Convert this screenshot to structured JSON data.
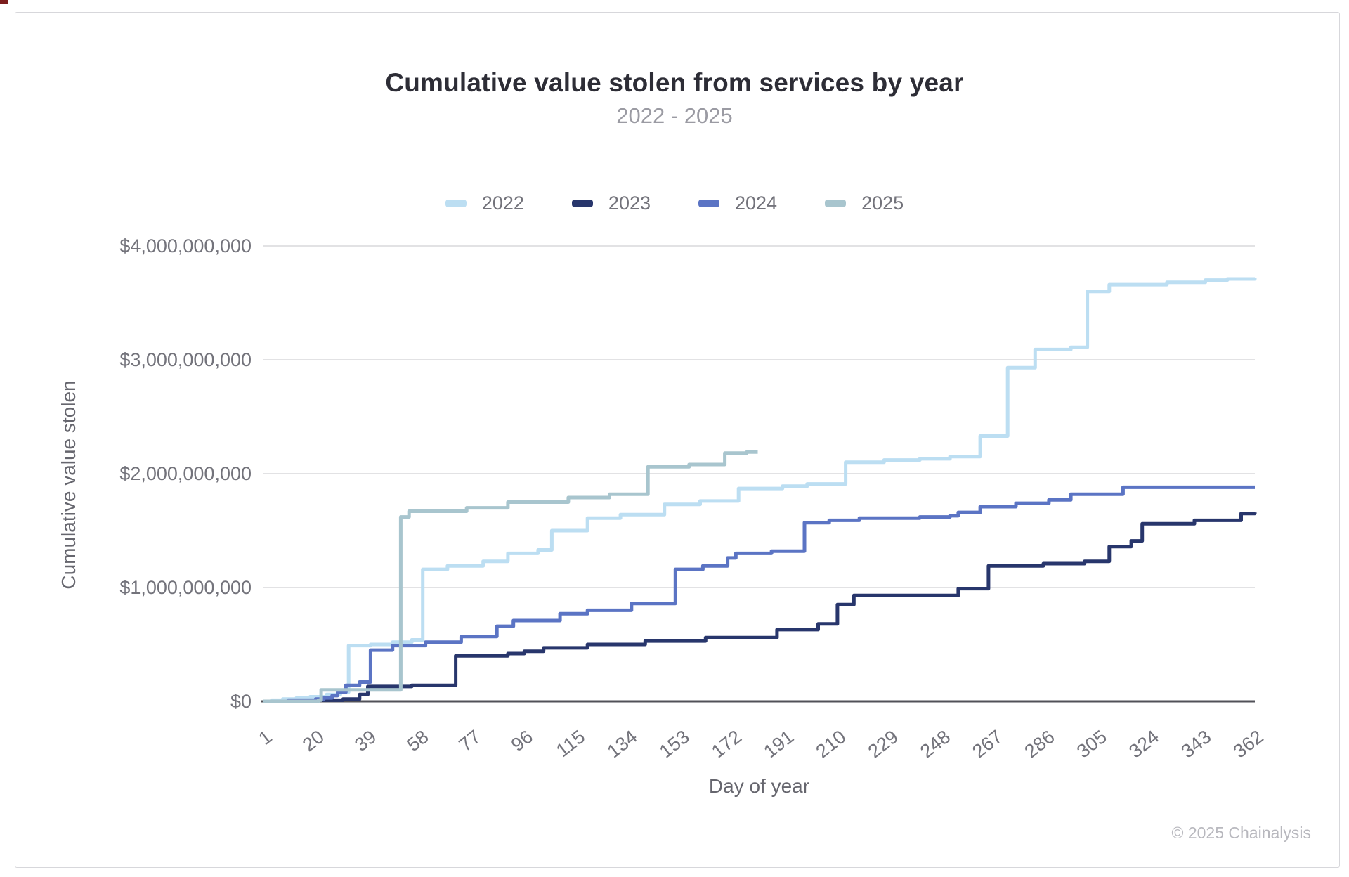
{
  "header": {
    "title": "Cumulative value stolen from services by year",
    "subtitle": "2022 - 2025"
  },
  "footer": {
    "credit": "© 2025 Chainalysis"
  },
  "chart_data": {
    "type": "line",
    "step": true,
    "title": "Cumulative value stolen from services by year",
    "subtitle": "2022 - 2025",
    "xlabel": "Day of year",
    "ylabel": "Cumulative value stolen",
    "unit": "USD",
    "xlim": [
      1,
      362
    ],
    "ylim": [
      0,
      4000000000
    ],
    "grid": "horizontal",
    "legend_position": "top",
    "x_ticks": [
      1,
      20,
      39,
      58,
      77,
      96,
      115,
      134,
      153,
      172,
      191,
      210,
      229,
      248,
      267,
      286,
      305,
      324,
      343,
      362
    ],
    "y_ticks": [
      {
        "value": 0,
        "label": "$0"
      },
      {
        "value": 1000000000,
        "label": "$1,000,000,000"
      },
      {
        "value": 2000000000,
        "label": "$2,000,000,000"
      },
      {
        "value": 3000000000,
        "label": "$3,000,000,000"
      },
      {
        "value": 4000000000,
        "label": "$4,000,000,000"
      }
    ],
    "colors": {
      "grid": "#d8d8dc",
      "baseline": "#515158",
      "tick_text": "#73737b",
      "axis_title_text": "#66666e"
    },
    "series": [
      {
        "name": "2022",
        "color": "#bcdef2",
        "points": [
          [
            1,
            0
          ],
          [
            4,
            10000000
          ],
          [
            8,
            20000000
          ],
          [
            13,
            30000000
          ],
          [
            18,
            40000000
          ],
          [
            24,
            60000000
          ],
          [
            29,
            80000000
          ],
          [
            32,
            490000000
          ],
          [
            40,
            500000000
          ],
          [
            48,
            520000000
          ],
          [
            55,
            540000000
          ],
          [
            59,
            1160000000
          ],
          [
            68,
            1190000000
          ],
          [
            81,
            1230000000
          ],
          [
            90,
            1300000000
          ],
          [
            101,
            1330000000
          ],
          [
            106,
            1500000000
          ],
          [
            119,
            1610000000
          ],
          [
            131,
            1640000000
          ],
          [
            147,
            1730000000
          ],
          [
            160,
            1760000000
          ],
          [
            174,
            1870000000
          ],
          [
            190,
            1890000000
          ],
          [
            199,
            1910000000
          ],
          [
            213,
            2100000000
          ],
          [
            227,
            2120000000
          ],
          [
            240,
            2130000000
          ],
          [
            251,
            2150000000
          ],
          [
            262,
            2330000000
          ],
          [
            272,
            2930000000
          ],
          [
            282,
            3090000000
          ],
          [
            295,
            3110000000
          ],
          [
            301,
            3600000000
          ],
          [
            309,
            3660000000
          ],
          [
            330,
            3680000000
          ],
          [
            344,
            3700000000
          ],
          [
            352,
            3710000000
          ],
          [
            362,
            3720000000
          ]
        ]
      },
      {
        "name": "2023",
        "color": "#28366c",
        "points": [
          [
            1,
            0
          ],
          [
            20,
            10000000
          ],
          [
            30,
            20000000
          ],
          [
            36,
            60000000
          ],
          [
            39,
            130000000
          ],
          [
            55,
            140000000
          ],
          [
            71,
            400000000
          ],
          [
            90,
            420000000
          ],
          [
            96,
            440000000
          ],
          [
            103,
            470000000
          ],
          [
            119,
            500000000
          ],
          [
            140,
            530000000
          ],
          [
            162,
            560000000
          ],
          [
            188,
            630000000
          ],
          [
            203,
            680000000
          ],
          [
            210,
            850000000
          ],
          [
            216,
            930000000
          ],
          [
            254,
            990000000
          ],
          [
            265,
            1190000000
          ],
          [
            285,
            1210000000
          ],
          [
            300,
            1230000000
          ],
          [
            309,
            1360000000
          ],
          [
            317,
            1410000000
          ],
          [
            321,
            1560000000
          ],
          [
            340,
            1590000000
          ],
          [
            357,
            1650000000
          ],
          [
            362,
            1660000000
          ]
        ]
      },
      {
        "name": "2024",
        "color": "#5b74c4",
        "points": [
          [
            1,
            0
          ],
          [
            10,
            10000000
          ],
          [
            20,
            20000000
          ],
          [
            23,
            30000000
          ],
          [
            26,
            50000000
          ],
          [
            28,
            80000000
          ],
          [
            31,
            140000000
          ],
          [
            36,
            170000000
          ],
          [
            40,
            450000000
          ],
          [
            48,
            490000000
          ],
          [
            60,
            520000000
          ],
          [
            73,
            570000000
          ],
          [
            86,
            660000000
          ],
          [
            92,
            710000000
          ],
          [
            109,
            770000000
          ],
          [
            119,
            800000000
          ],
          [
            135,
            860000000
          ],
          [
            151,
            1160000000
          ],
          [
            161,
            1190000000
          ],
          [
            170,
            1260000000
          ],
          [
            173,
            1300000000
          ],
          [
            186,
            1320000000
          ],
          [
            198,
            1570000000
          ],
          [
            207,
            1590000000
          ],
          [
            218,
            1610000000
          ],
          [
            240,
            1620000000
          ],
          [
            251,
            1630000000
          ],
          [
            254,
            1660000000
          ],
          [
            262,
            1710000000
          ],
          [
            275,
            1740000000
          ],
          [
            287,
            1770000000
          ],
          [
            295,
            1820000000
          ],
          [
            314,
            1880000000
          ],
          [
            362,
            1880000000
          ]
        ]
      },
      {
        "name": "2025",
        "color": "#a8c5ce",
        "points": [
          [
            1,
            0
          ],
          [
            21,
            10000000
          ],
          [
            22,
            100000000
          ],
          [
            51,
            1620000000
          ],
          [
            54,
            1670000000
          ],
          [
            75,
            1700000000
          ],
          [
            90,
            1750000000
          ],
          [
            112,
            1790000000
          ],
          [
            127,
            1820000000
          ],
          [
            141,
            2060000000
          ],
          [
            156,
            2080000000
          ],
          [
            169,
            2180000000
          ],
          [
            177,
            2190000000
          ],
          [
            181,
            2190000000
          ]
        ]
      }
    ]
  }
}
